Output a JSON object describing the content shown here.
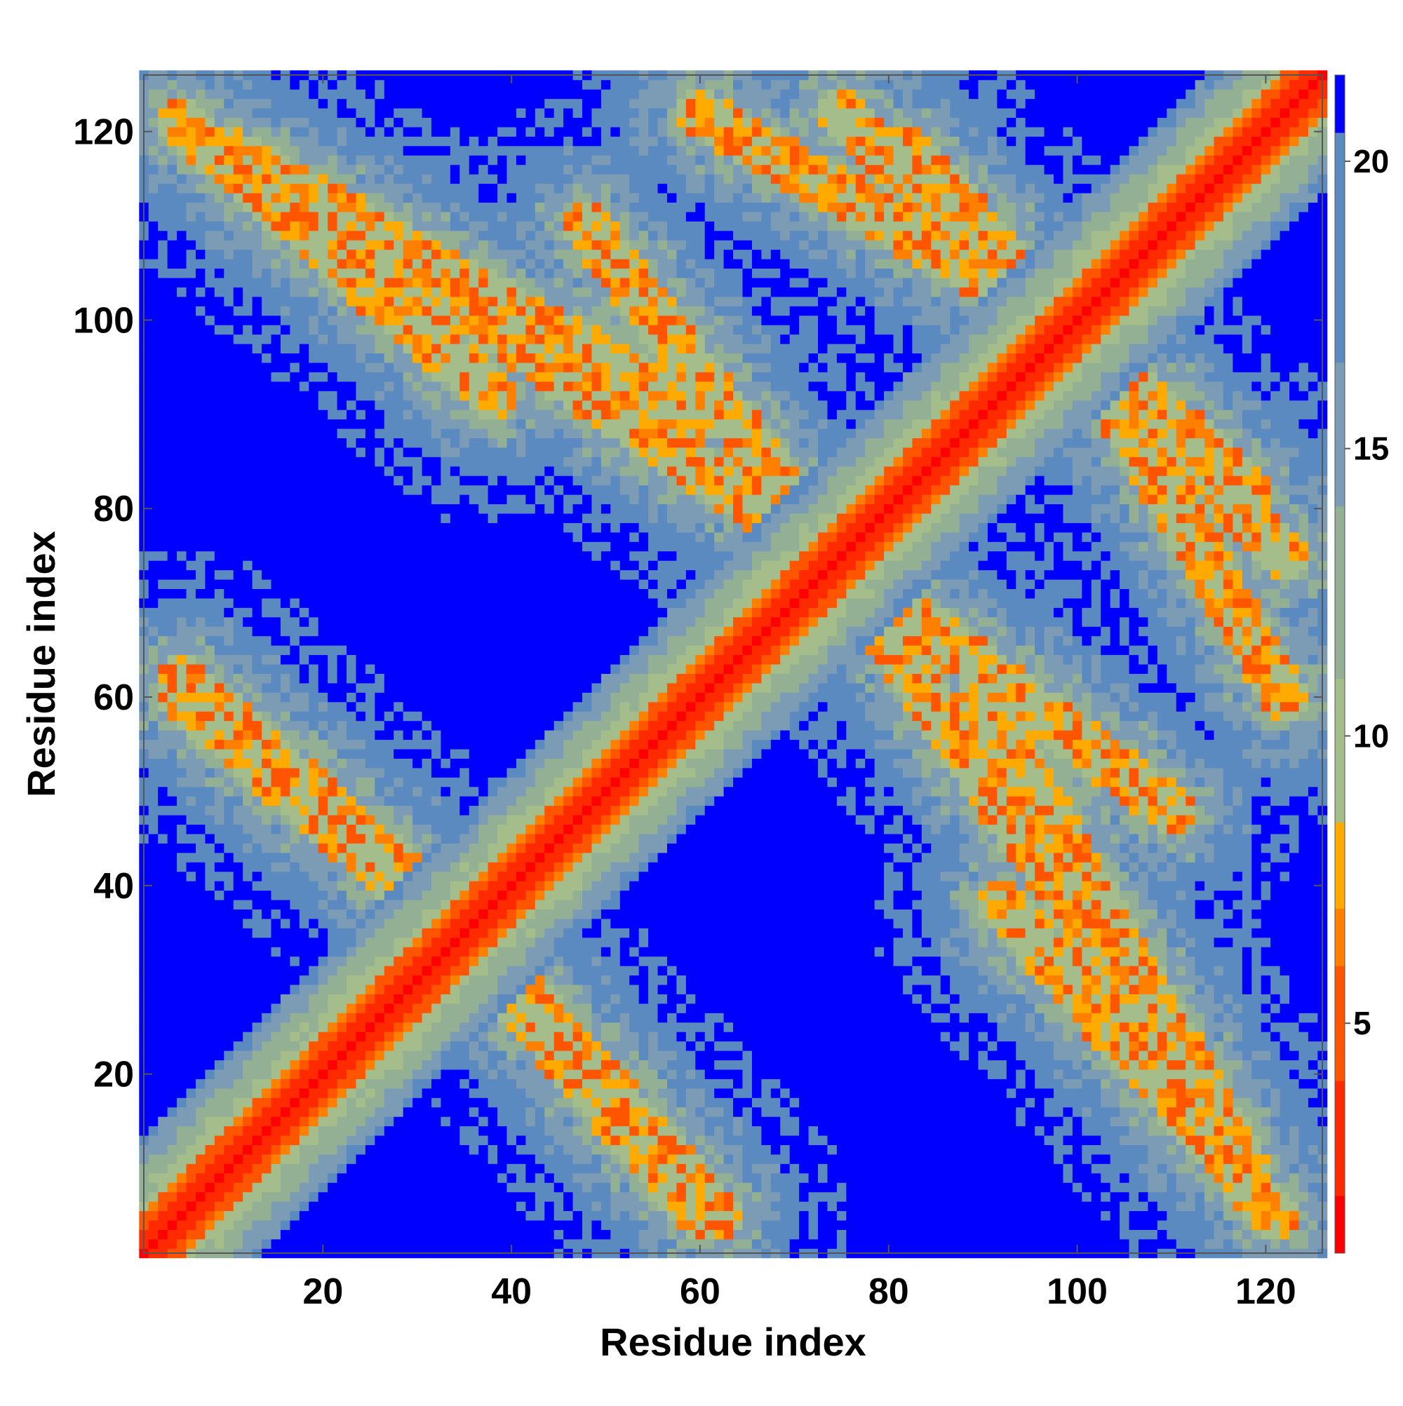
{
  "chart_data": {
    "type": "heatmap",
    "title": "",
    "xlabel": "Residue index",
    "ylabel": "Residue index",
    "n_residues": 126,
    "xlim": [
      1,
      126
    ],
    "ylim": [
      1,
      126
    ],
    "x_ticks": [
      20,
      40,
      60,
      80,
      100,
      120
    ],
    "y_ticks": [
      20,
      40,
      60,
      80,
      100,
      120
    ],
    "colorbar": {
      "min": 1,
      "max": 21.5,
      "ticks": [
        5,
        10,
        15,
        20
      ],
      "colors": [
        {
          "from": 1,
          "to": 2,
          "color": "#ff0000"
        },
        {
          "from": 2,
          "to": 4,
          "color": "#ff2a00"
        },
        {
          "from": 4,
          "to": 6,
          "color": "#ff5500"
        },
        {
          "from": 6,
          "to": 7,
          "color": "#ff8000"
        },
        {
          "from": 7,
          "to": 8.5,
          "color": "#ffaa00"
        },
        {
          "from": 8.5,
          "to": 11,
          "color": "#a5bd8a"
        },
        {
          "from": 11,
          "to": 14,
          "color": "#94b094"
        },
        {
          "from": 14,
          "to": 16.5,
          "color": "#7b9cb4"
        },
        {
          "from": 16.5,
          "to": 20.5,
          "color": "#5b8ac0"
        },
        {
          "from": 20.5,
          "to": 21.5,
          "color": "#0000ff"
        }
      ]
    },
    "description_of_values": "Pairwise residue distance map; values near 1 along the diagonal, saturated blue beyond ~20",
    "structure": {
      "diagonal": {
        "from": [
          1,
          1
        ],
        "to": [
          126,
          126
        ]
      },
      "anti_diagonal_bands": [
        {
          "from": [
            5,
            121
          ],
          "to": [
            38,
            92
          ]
        },
        {
          "from": [
            48,
            110
          ],
          "to": [
            72,
            78
          ]
        },
        {
          "from": [
            90,
            60
          ],
          "to": [
            118,
            10
          ]
        },
        {
          "from": [
            72,
            78
          ],
          "to": [
            118,
            10
          ]
        },
        {
          "from": [
            5,
            60
          ],
          "to": [
            40,
            30
          ]
        },
        {
          "from": [
            40,
            30
          ],
          "to": [
            62,
            5
          ]
        },
        {
          "from": [
            82,
            118
          ],
          "to": [
            122,
            75
          ]
        },
        {
          "from": [
            100,
            98
          ],
          "to": [
            122,
            60
          ]
        }
      ]
    }
  }
}
